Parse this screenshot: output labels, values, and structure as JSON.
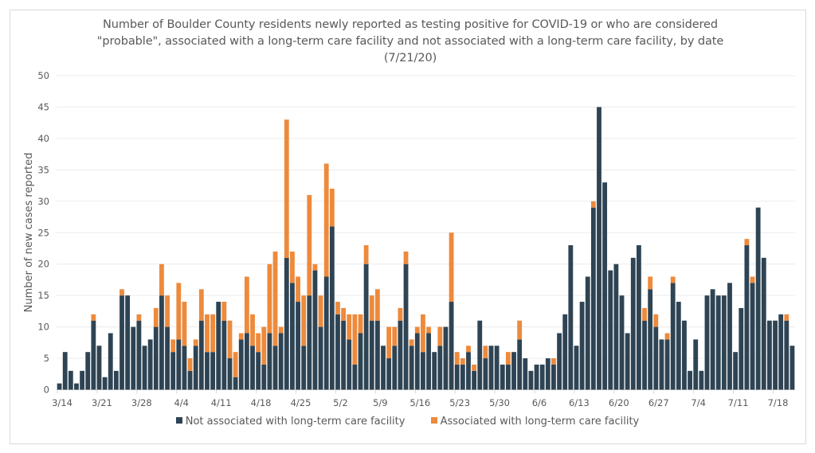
{
  "chart_data": {
    "type": "bar",
    "stacked": true,
    "title": "Number of Boulder County residents newly reported as testing positive for COVID-19 or who are considered \"probable\", associated with a long-term care facility and not associated with a long-term care facility, by date (7/21/20)",
    "xlabel": "",
    "ylabel": "Number of new cases reported",
    "ylim": [
      0,
      50
    ],
    "yticks": [
      0,
      5,
      10,
      15,
      20,
      25,
      30,
      35,
      40,
      45,
      50
    ],
    "grid": true,
    "legend_position": "bottom",
    "start_date": "3/14",
    "x_tick_labels": [
      "3/14",
      "3/21",
      "3/28",
      "4/4",
      "4/11",
      "4/18",
      "4/25",
      "5/2",
      "5/9",
      "5/16",
      "5/23",
      "5/30",
      "6/6",
      "6/13",
      "6/20",
      "6/27",
      "7/4",
      "7/11",
      "7/18"
    ],
    "x_tick_every_days": 7,
    "series": [
      {
        "name": "Not associated with long-term care facility",
        "color": "#2e4454",
        "values": [
          1,
          6,
          3,
          1,
          3,
          6,
          11,
          7,
          2,
          9,
          3,
          15,
          15,
          10,
          11,
          7,
          8,
          10,
          15,
          10,
          6,
          8,
          7,
          3,
          7,
          11,
          6,
          6,
          14,
          11,
          5,
          2,
          8,
          9,
          7,
          6,
          4,
          9,
          7,
          9,
          21,
          17,
          14,
          7,
          15,
          19,
          10,
          18,
          26,
          12,
          11,
          8,
          4,
          9,
          20,
          11,
          11,
          7,
          5,
          7,
          11,
          20,
          7,
          9,
          6,
          9,
          6,
          7,
          10,
          14,
          4,
          4,
          6,
          3,
          11,
          5,
          7,
          7,
          4,
          4,
          6,
          8,
          5,
          3,
          4,
          4,
          5,
          4,
          9,
          12,
          23,
          7,
          14,
          18,
          29,
          45,
          33,
          19,
          20,
          15,
          9,
          21,
          23,
          11,
          16,
          10,
          8,
          8,
          17,
          14,
          11,
          3,
          8,
          3,
          15,
          16,
          15,
          15,
          17,
          6,
          13,
          23,
          17,
          29,
          21,
          11,
          11,
          12,
          11,
          7
        ]
      },
      {
        "name": "Associated with long-term care facility",
        "color": "#ed8a3c",
        "values": [
          0,
          0,
          0,
          0,
          0,
          0,
          1,
          0,
          0,
          0,
          0,
          1,
          0,
          0,
          1,
          0,
          0,
          3,
          5,
          5,
          2,
          9,
          7,
          2,
          1,
          5,
          6,
          6,
          0,
          3,
          6,
          4,
          1,
          9,
          5,
          3,
          6,
          11,
          15,
          1,
          22,
          5,
          4,
          8,
          16,
          1,
          5,
          18,
          6,
          2,
          2,
          4,
          8,
          3,
          3,
          4,
          5,
          0,
          5,
          3,
          2,
          2,
          1,
          1,
          6,
          1,
          0,
          3,
          0,
          11,
          2,
          1,
          1,
          1,
          0,
          2,
          0,
          0,
          0,
          2,
          0,
          3,
          0,
          0,
          0,
          0,
          0,
          1,
          0,
          0,
          0,
          0,
          0,
          0,
          1,
          0,
          0,
          0,
          0,
          0,
          0,
          0,
          0,
          2,
          2,
          2,
          0,
          1,
          1,
          0,
          0,
          0,
          0,
          0,
          0,
          0,
          0,
          0,
          0,
          0,
          0,
          1,
          1,
          0,
          0,
          0,
          0,
          0,
          1,
          0
        ]
      }
    ]
  }
}
